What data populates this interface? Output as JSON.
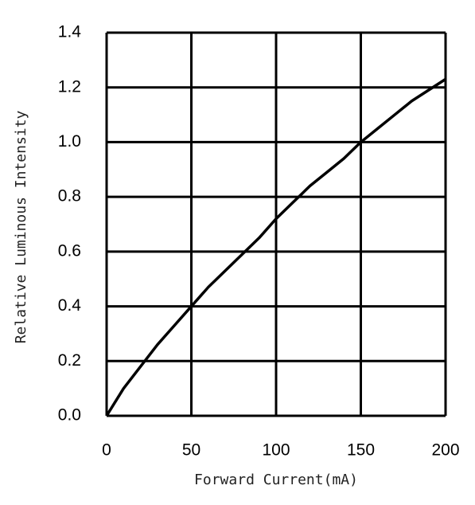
{
  "chart_data": {
    "type": "line",
    "xlabel": "Forward Current(mA)",
    "ylabel": "Relative Luminous Intensity",
    "x": [
      0,
      10,
      20,
      30,
      40,
      50,
      60,
      70,
      80,
      90,
      100,
      110,
      120,
      130,
      140,
      150,
      160,
      170,
      180,
      190,
      200
    ],
    "series": [
      {
        "color": "#000000",
        "values": [
          0,
          0.1,
          0.18,
          0.26,
          0.33,
          0.4,
          0.47,
          0.53,
          0.59,
          0.65,
          0.72,
          0.78,
          0.84,
          0.89,
          0.94,
          1.0,
          1.05,
          1.1,
          1.15,
          1.19,
          1.23
        ]
      }
    ],
    "xlim": [
      0,
      200
    ],
    "xticks": [
      0,
      50,
      100,
      150,
      200
    ],
    "ylim": [
      0,
      1.4
    ],
    "yticks": [
      {
        "value": 0,
        "label": "0.0"
      },
      0.2,
      0.4,
      0.6,
      0.8,
      {
        "value": 1,
        "label": "1.0"
      },
      1.2,
      1.4
    ],
    "grid": true
  }
}
